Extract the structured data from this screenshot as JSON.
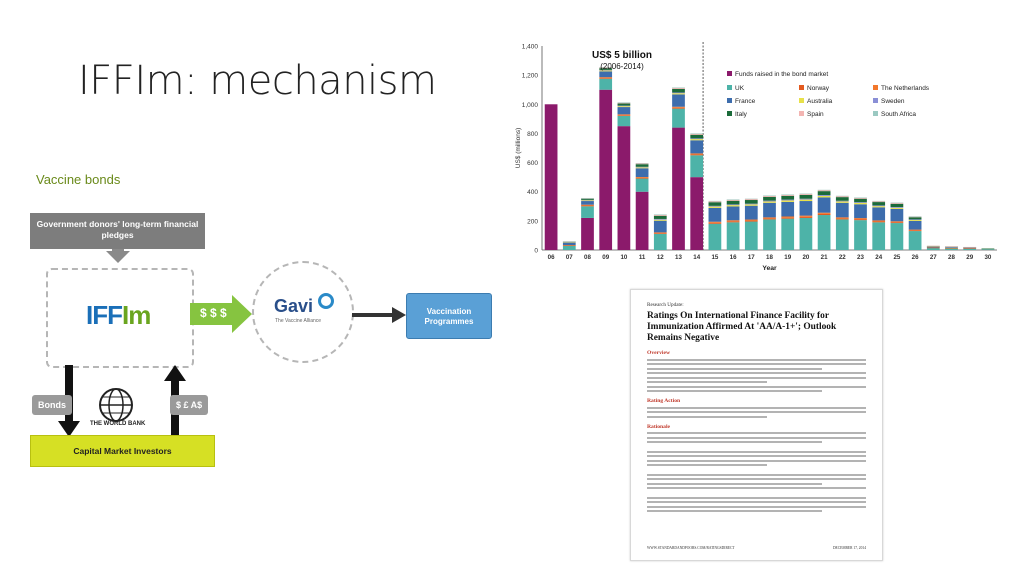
{
  "slide": {
    "title": "IFFIm: mechanism",
    "subtitle": "Vaccine bonds"
  },
  "diagram": {
    "donor_box": "Government donors' long-term financial pledges",
    "iffim_logo_main": "IFF",
    "iffim_logo_accent": "Im",
    "money_label": "$ $ $",
    "gavi_logo": "Gavi",
    "gavi_tagline": "The Vaccine Alliance",
    "vaccination_box": "Vaccination Programmes",
    "bonds_label": "Bonds",
    "currency_label": "$ £ A$",
    "world_bank_label": "THE WORLD BANK",
    "capital_market": "Capital Market Investors"
  },
  "chart_data": {
    "type": "bar",
    "title": "US$ 5 billion",
    "subtitle": "(2006-2014)",
    "xlabel": "Year",
    "ylabel": "US$ (millions)",
    "ylim": [
      0,
      1400
    ],
    "yticks": [
      0,
      200,
      400,
      600,
      800,
      1000,
      1200,
      1400
    ],
    "categories": [
      "06",
      "07",
      "08",
      "09",
      "10",
      "11",
      "12",
      "13",
      "14",
      "15",
      "16",
      "17",
      "18",
      "19",
      "20",
      "21",
      "22",
      "23",
      "24",
      "25",
      "26",
      "27",
      "28",
      "29",
      "30"
    ],
    "series": [
      {
        "name": "Funds raised in the bond market",
        "color": "#8b1a6b",
        "values": [
          1000,
          0,
          220,
          1100,
          850,
          400,
          0,
          840,
          500,
          0,
          0,
          0,
          0,
          0,
          0,
          0,
          0,
          0,
          0,
          0,
          0,
          0,
          0,
          0,
          0
        ]
      },
      {
        "name": "UK",
        "color": "#4db3a8",
        "values": [
          0,
          30,
          80,
          75,
          70,
          90,
          110,
          130,
          150,
          180,
          190,
          195,
          210,
          215,
          220,
          240,
          210,
          205,
          190,
          185,
          130,
          15,
          12,
          10,
          5
        ]
      },
      {
        "name": "Norway",
        "color": "#e35a1f",
        "values": [
          0,
          2,
          5,
          5,
          5,
          5,
          5,
          6,
          6,
          7,
          7,
          7,
          7,
          7,
          8,
          8,
          7,
          7,
          6,
          6,
          5,
          1,
          1,
          1,
          0
        ]
      },
      {
        "name": "The Netherlands",
        "color": "#f2772b",
        "values": [
          0,
          2,
          6,
          6,
          6,
          6,
          6,
          7,
          7,
          7,
          7,
          7,
          7,
          8,
          8,
          8,
          7,
          7,
          7,
          6,
          5,
          1,
          1,
          1,
          0
        ]
      },
      {
        "name": "France",
        "color": "#3d6dad",
        "values": [
          0,
          15,
          25,
          40,
          50,
          60,
          80,
          85,
          90,
          95,
          95,
          95,
          100,
          100,
          100,
          105,
          100,
          95,
          90,
          85,
          60,
          5,
          4,
          3,
          2
        ]
      },
      {
        "name": "Australia",
        "color": "#e8e14a",
        "values": [
          0,
          3,
          5,
          6,
          6,
          6,
          7,
          8,
          8,
          9,
          9,
          9,
          9,
          10,
          10,
          10,
          9,
          9,
          8,
          8,
          6,
          3,
          3,
          2,
          2
        ]
      },
      {
        "name": "Sweden",
        "color": "#8a8fd6",
        "values": [
          0,
          2,
          3,
          4,
          4,
          4,
          5,
          5,
          5,
          5,
          5,
          5,
          6,
          6,
          6,
          6,
          5,
          5,
          5,
          5,
          4,
          1,
          1,
          1,
          0
        ]
      },
      {
        "name": "Italy",
        "color": "#1b6b3a",
        "values": [
          0,
          3,
          8,
          12,
          15,
          18,
          22,
          25,
          25,
          25,
          25,
          25,
          26,
          26,
          26,
          27,
          25,
          24,
          23,
          22,
          15,
          2,
          2,
          2,
          1
        ]
      },
      {
        "name": "Spain",
        "color": "#f3b5b2",
        "values": [
          0,
          2,
          4,
          6,
          6,
          7,
          8,
          8,
          8,
          8,
          8,
          8,
          8,
          8,
          8,
          8,
          8,
          7,
          7,
          7,
          5,
          1,
          1,
          1,
          0
        ]
      },
      {
        "name": "South Africa",
        "color": "#9bc9c2",
        "values": [
          0,
          1,
          1,
          1,
          1,
          1,
          1,
          1,
          1,
          1,
          1,
          1,
          1,
          1,
          1,
          1,
          1,
          1,
          1,
          1,
          1,
          0,
          0,
          0,
          0
        ]
      }
    ],
    "legend_position": "top-right",
    "grid": false
  },
  "document": {
    "kicker": "Research Update:",
    "title": "Ratings On International Finance Facility for Immunization Affirmed At 'AA/A-1+'; Outlook Remains Negative",
    "sections": [
      "Overview",
      "Rating Action",
      "Rationale"
    ],
    "footer_left": "WWW.STANDARDANDPOORS.COM/RATINGSDIRECT",
    "footer_right": "DECEMBER 17, 2014"
  }
}
